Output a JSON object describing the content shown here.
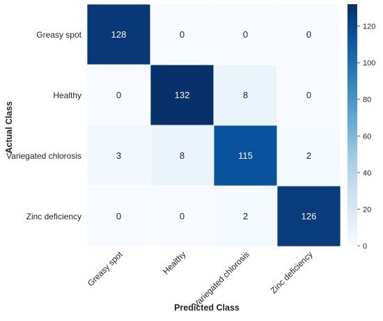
{
  "chart_data": {
    "type": "heatmap",
    "title": "",
    "xlabel": "Predicted Class",
    "ylabel": "Actual Class",
    "x_categories": [
      "Greasy spot",
      "Healthy",
      "Variegated chlorosis",
      "Zinc deficiency"
    ],
    "y_categories": [
      "Greasy spot",
      "Healthy",
      "Variegated chlorosis",
      "Zinc deficiency"
    ],
    "values": [
      [
        128,
        0,
        0,
        0
      ],
      [
        0,
        132,
        8,
        0
      ],
      [
        3,
        8,
        115,
        2
      ],
      [
        0,
        0,
        2,
        126
      ]
    ],
    "colormap": "Blues",
    "color_range": [
      0,
      132
    ],
    "colorbar_ticks": [
      0,
      20,
      40,
      60,
      80,
      100,
      120
    ],
    "grid": false,
    "legend": "none"
  },
  "colors": {
    "low": "#f7fbff",
    "high": "#08306b",
    "text_on_dark": "#ffffff",
    "text_on_light": "#222222"
  }
}
